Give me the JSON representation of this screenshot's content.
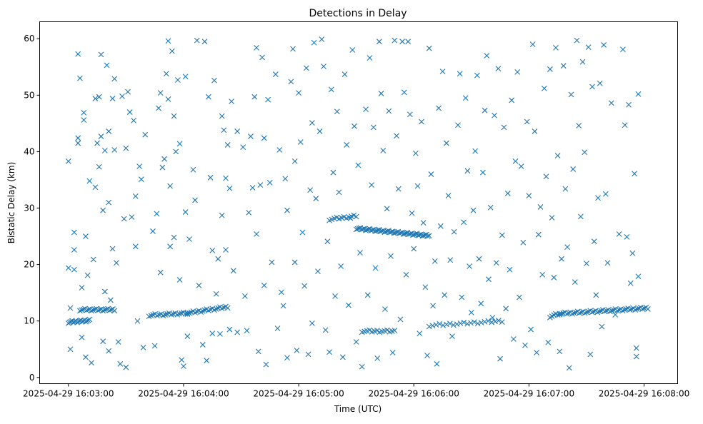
{
  "chart_data": {
    "type": "scatter",
    "title": "Detections in Delay",
    "xlabel": "Time (UTC)",
    "ylabel": "Bistatic Delay (km)",
    "x_units": "seconds after 2025-04-29 16:03:00",
    "xlim": [
      -15,
      317.5
    ],
    "ylim": [
      -1.1,
      63
    ],
    "x_ticks": [
      {
        "value": 0,
        "label": "2025-04-29 16:03:00"
      },
      {
        "value": 60,
        "label": "2025-04-29 16:04:00"
      },
      {
        "value": 120,
        "label": "2025-04-29 16:05:00"
      },
      {
        "value": 180,
        "label": "2025-04-29 16:06:00"
      },
      {
        "value": 240,
        "label": "2025-04-29 16:07:00"
      },
      {
        "value": 300,
        "label": "2025-04-29 16:08:00"
      }
    ],
    "y_ticks": [
      0,
      10,
      20,
      30,
      40,
      50,
      60
    ],
    "marker": "x",
    "color": "#1f77b4",
    "grid": false,
    "tracks": [
      {
        "t0": 0,
        "t1": 11,
        "d0": 9.8,
        "d1": 10.1,
        "n": 18
      },
      {
        "t0": 6,
        "t1": 24,
        "d0": 12.0,
        "d1": 12.0,
        "n": 22
      },
      {
        "t0": 42,
        "t1": 62,
        "d0": 11.0,
        "d1": 11.4,
        "n": 20
      },
      {
        "t0": 62,
        "t1": 83,
        "d0": 11.4,
        "d1": 12.5,
        "n": 22
      },
      {
        "t0": 136,
        "t1": 150,
        "d0": 28.0,
        "d1": 28.6,
        "n": 12
      },
      {
        "t0": 150,
        "t1": 188,
        "d0": 26.4,
        "d1": 25.1,
        "n": 55
      },
      {
        "t0": 153,
        "t1": 170,
        "d0": 8.2,
        "d1": 8.2,
        "n": 14
      },
      {
        "t0": 188,
        "t1": 226,
        "d0": 9.2,
        "d1": 10.0,
        "n": 22
      },
      {
        "t0": 251,
        "t1": 256,
        "d0": 10.8,
        "d1": 11.3,
        "n": 6
      },
      {
        "t0": 256,
        "t1": 302,
        "d0": 11.3,
        "d1": 12.3,
        "n": 50
      }
    ],
    "points": [
      [
        0,
        38.3
      ],
      [
        0,
        19.4
      ],
      [
        1,
        5
      ],
      [
        1,
        12.3
      ],
      [
        3,
        22.6
      ],
      [
        3,
        25.7
      ],
      [
        3,
        19.1
      ],
      [
        5,
        42.4
      ],
      [
        5,
        41.5
      ],
      [
        5,
        57.3
      ],
      [
        6,
        53
      ],
      [
        7,
        15.9
      ],
      [
        7,
        7.1
      ],
      [
        8,
        46.9
      ],
      [
        8,
        45.6
      ],
      [
        9,
        25
      ],
      [
        9,
        3.6
      ],
      [
        10,
        18.1
      ],
      [
        11,
        34.8
      ],
      [
        12,
        2.6
      ],
      [
        13,
        20.9
      ],
      [
        14,
        49.4
      ],
      [
        14,
        33.7
      ],
      [
        15,
        41.5
      ],
      [
        16,
        49.7
      ],
      [
        16,
        37.3
      ],
      [
        17,
        57.2
      ],
      [
        17,
        42.7
      ],
      [
        18,
        29.6
      ],
      [
        18,
        6.4
      ],
      [
        19,
        40.2
      ],
      [
        19,
        15.2
      ],
      [
        20,
        55.3
      ],
      [
        21,
        43.6
      ],
      [
        21,
        31
      ],
      [
        21,
        4.7
      ],
      [
        22,
        13.7
      ],
      [
        23,
        22.8
      ],
      [
        23,
        49.4
      ],
      [
        24,
        52.9
      ],
      [
        24,
        40.3
      ],
      [
        25,
        20.3
      ],
      [
        26,
        6.3
      ],
      [
        27,
        2.4
      ],
      [
        28,
        49.8
      ],
      [
        29,
        28.1
      ],
      [
        30,
        40.6
      ],
      [
        30,
        1.8
      ],
      [
        31,
        50.6
      ],
      [
        32,
        47
      ],
      [
        33,
        28.4
      ],
      [
        34,
        45.5
      ],
      [
        35,
        32.1
      ],
      [
        35,
        23.2
      ],
      [
        36,
        10
      ],
      [
        37,
        37.4
      ],
      [
        38,
        35.1
      ],
      [
        39,
        5.3
      ],
      [
        40,
        43
      ],
      [
        44,
        25.9
      ],
      [
        45,
        5.6
      ],
      [
        46,
        29
      ],
      [
        47,
        47.7
      ],
      [
        48,
        50.4
      ],
      [
        48,
        18.6
      ],
      [
        49,
        37.2
      ],
      [
        50,
        38.7
      ],
      [
        51,
        53.8
      ],
      [
        52,
        59.6
      ],
      [
        52,
        49.3
      ],
      [
        53,
        33.9
      ],
      [
        53,
        23.2
      ],
      [
        54,
        57.8
      ],
      [
        55,
        46.3
      ],
      [
        55,
        24.8
      ],
      [
        56,
        40
      ],
      [
        57,
        52.7
      ],
      [
        58,
        41.4
      ],
      [
        58,
        17.3
      ],
      [
        59,
        3.1
      ],
      [
        60,
        2
      ],
      [
        61,
        53.3
      ],
      [
        61,
        29.3
      ],
      [
        62,
        7.3
      ],
      [
        63,
        24.5
      ],
      [
        65,
        36.8
      ],
      [
        66,
        31.4
      ],
      [
        67,
        59.7
      ],
      [
        68,
        16.3
      ],
      [
        70,
        5.8
      ],
      [
        71,
        59.5
      ],
      [
        72,
        3
      ],
      [
        73,
        49.7
      ],
      [
        74,
        35.4
      ],
      [
        75,
        22.5
      ],
      [
        75,
        7.8
      ],
      [
        76,
        52.6
      ],
      [
        77,
        14.8
      ],
      [
        78,
        21
      ],
      [
        79,
        7.7
      ],
      [
        80,
        46.3
      ],
      [
        80,
        28.7
      ],
      [
        81,
        43.8
      ],
      [
        82,
        35.3
      ],
      [
        82,
        22.6
      ],
      [
        83,
        41.2
      ],
      [
        84,
        33.5
      ],
      [
        84,
        8.5
      ],
      [
        85,
        48.9
      ],
      [
        86,
        18.9
      ],
      [
        88,
        43.6
      ],
      [
        88,
        8
      ],
      [
        91,
        40.8
      ],
      [
        92,
        14.4
      ],
      [
        93,
        8.3
      ],
      [
        94,
        29.2
      ],
      [
        95,
        42.7
      ],
      [
        96,
        33.6
      ],
      [
        97,
        49.7
      ],
      [
        98,
        58.4
      ],
      [
        98,
        25.4
      ],
      [
        99,
        4.6
      ],
      [
        100,
        34.1
      ],
      [
        101,
        56.7
      ],
      [
        102,
        42.4
      ],
      [
        102,
        16.3
      ],
      [
        103,
        2.3
      ],
      [
        104,
        49.2
      ],
      [
        105,
        34.5
      ],
      [
        106,
        20.4
      ],
      [
        108,
        53.7
      ],
      [
        109,
        8.7
      ],
      [
        110,
        40.3
      ],
      [
        111,
        15.1
      ],
      [
        112,
        12.7
      ],
      [
        113,
        35.2
      ],
      [
        114,
        29.6
      ],
      [
        114,
        3.5
      ],
      [
        116,
        52.4
      ],
      [
        117,
        58.2
      ],
      [
        118,
        38.3
      ],
      [
        118,
        20.4
      ],
      [
        119,
        4.8
      ],
      [
        120,
        50.4
      ],
      [
        121,
        41.7
      ],
      [
        122,
        25.7
      ],
      [
        123,
        16.2
      ],
      [
        124,
        54.8
      ],
      [
        125,
        4.1
      ],
      [
        126,
        33.2
      ],
      [
        127,
        45.1
      ],
      [
        127,
        9.6
      ],
      [
        128,
        59.3
      ],
      [
        129,
        31.7
      ],
      [
        130,
        18.8
      ],
      [
        131,
        43.6
      ],
      [
        132,
        59.9
      ],
      [
        133,
        55.1
      ],
      [
        134,
        8.4
      ],
      [
        135,
        24.1
      ],
      [
        136,
        4.5
      ],
      [
        137,
        51
      ],
      [
        138,
        36.3
      ],
      [
        139,
        14.4
      ],
      [
        140,
        47.1
      ],
      [
        141,
        32.8
      ],
      [
        142,
        19.7
      ],
      [
        143,
        3.6
      ],
      [
        144,
        53.7
      ],
      [
        145,
        41.2
      ],
      [
        146,
        12.8
      ],
      [
        147,
        28.2
      ],
      [
        148,
        58
      ],
      [
        149,
        44.5
      ],
      [
        150,
        6.3
      ],
      [
        151,
        37.6
      ],
      [
        152,
        22.1
      ],
      [
        153,
        1.9
      ],
      [
        155,
        47.5
      ],
      [
        156,
        14.6
      ],
      [
        157,
        56.6
      ],
      [
        158,
        34.1
      ],
      [
        159,
        44.3
      ],
      [
        160,
        19.4
      ],
      [
        161,
        3.4
      ],
      [
        162,
        59.5
      ],
      [
        163,
        50.3
      ],
      [
        164,
        40.2
      ],
      [
        165,
        12.1
      ],
      [
        166,
        29.9
      ],
      [
        167,
        47.2
      ],
      [
        168,
        21.5
      ],
      [
        169,
        4.4
      ],
      [
        170,
        59.7
      ],
      [
        171,
        42.8
      ],
      [
        172,
        33.4
      ],
      [
        173,
        10.3
      ],
      [
        174,
        59.5
      ],
      [
        175,
        50.5
      ],
      [
        176,
        18.2
      ],
      [
        177,
        59.5
      ],
      [
        178,
        46.6
      ],
      [
        179,
        29.1
      ],
      [
        180,
        22.8
      ],
      [
        181,
        39.7
      ],
      [
        182,
        33.9
      ],
      [
        183,
        7.8
      ],
      [
        184,
        45.3
      ],
      [
        185,
        27.4
      ],
      [
        186,
        16
      ],
      [
        187,
        3.9
      ],
      [
        188,
        58.3
      ],
      [
        189,
        36
      ],
      [
        190,
        12.7
      ],
      [
        191,
        20.6
      ],
      [
        192,
        2.4
      ],
      [
        193,
        47.7
      ],
      [
        194,
        26.8
      ],
      [
        195,
        54.2
      ],
      [
        196,
        14.6
      ],
      [
        197,
        41.5
      ],
      [
        198,
        32.2
      ],
      [
        199,
        20.8
      ],
      [
        200,
        7.3
      ],
      [
        201,
        25.8
      ],
      [
        203,
        44.7
      ],
      [
        204,
        53.8
      ],
      [
        205,
        14.2
      ],
      [
        206,
        27.5
      ],
      [
        207,
        49.5
      ],
      [
        208,
        36.6
      ],
      [
        209,
        19.7
      ],
      [
        210,
        11.5
      ],
      [
        211,
        29.6
      ],
      [
        212,
        40.1
      ],
      [
        213,
        53.5
      ],
      [
        214,
        21
      ],
      [
        215,
        13.1
      ],
      [
        216,
        36.3
      ],
      [
        217,
        47.3
      ],
      [
        218,
        57
      ],
      [
        219,
        17.4
      ],
      [
        220,
        30.1
      ],
      [
        221,
        10.6
      ],
      [
        222,
        46.4
      ],
      [
        223,
        20.3
      ],
      [
        224,
        54.7
      ],
      [
        225,
        3.3
      ],
      [
        226,
        25.2
      ],
      [
        227,
        44.3
      ],
      [
        228,
        12.2
      ],
      [
        229,
        32.6
      ],
      [
        230,
        19.1
      ],
      [
        231,
        49.1
      ],
      [
        232,
        6.8
      ],
      [
        233,
        38.3
      ],
      [
        234,
        54.1
      ],
      [
        235,
        14.2
      ],
      [
        236,
        37.4
      ],
      [
        237,
        23.9
      ],
      [
        238,
        5.7
      ],
      [
        239,
        45.3
      ],
      [
        240,
        32.2
      ],
      [
        241,
        8.5
      ],
      [
        242,
        59
      ],
      [
        243,
        43.6
      ],
      [
        244,
        4.4
      ],
      [
        245,
        25.3
      ],
      [
        246,
        30.2
      ],
      [
        247,
        18.2
      ],
      [
        248,
        51.2
      ],
      [
        249,
        35.6
      ],
      [
        250,
        6.2
      ],
      [
        251,
        54.6
      ],
      [
        252,
        28.3
      ],
      [
        253,
        17.7
      ],
      [
        254,
        58.4
      ],
      [
        255,
        39.3
      ],
      [
        256,
        4.6
      ],
      [
        257,
        21
      ],
      [
        258,
        55.2
      ],
      [
        259,
        33.4
      ],
      [
        260,
        23.1
      ],
      [
        261,
        1.7
      ],
      [
        262,
        50.1
      ],
      [
        263,
        36.9
      ],
      [
        264,
        16.9
      ],
      [
        265,
        59.7
      ],
      [
        266,
        44.6
      ],
      [
        267,
        28.5
      ],
      [
        268,
        55.9
      ],
      [
        269,
        39.9
      ],
      [
        270,
        20.2
      ],
      [
        271,
        58.5
      ],
      [
        272,
        4.1
      ],
      [
        273,
        51.5
      ],
      [
        274,
        24.1
      ],
      [
        275,
        14.6
      ],
      [
        276,
        31.8
      ],
      [
        277,
        52.1
      ],
      [
        278,
        9
      ],
      [
        279,
        58.9
      ],
      [
        280,
        32.5
      ],
      [
        281,
        20.3
      ],
      [
        283,
        48.6
      ],
      [
        285,
        11.1
      ],
      [
        287,
        25.4
      ],
      [
        289,
        58.1
      ],
      [
        290,
        44.7
      ],
      [
        291,
        24.9
      ],
      [
        292,
        48.3
      ],
      [
        293,
        16.7
      ],
      [
        294,
        22
      ],
      [
        295,
        36.1
      ],
      [
        296,
        3.7
      ],
      [
        296,
        5.2
      ],
      [
        297,
        17.9
      ],
      [
        297,
        50.2
      ]
    ]
  }
}
